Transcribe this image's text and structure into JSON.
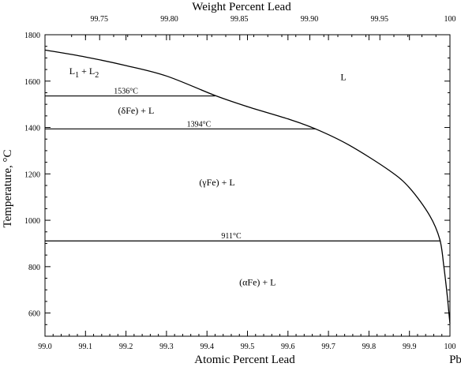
{
  "chart_data": {
    "type": "line",
    "title": "",
    "xlabel": "Atomic Percent Lead",
    "x2label": "Weight Percent Lead",
    "ylabel": "Temperature, °C",
    "xlim": [
      99.0,
      100.0
    ],
    "ylim": [
      500,
      1800
    ],
    "x_ticks": [
      99.0,
      99.1,
      99.2,
      99.3,
      99.4,
      99.5,
      99.6,
      99.7,
      99.8,
      99.9,
      100
    ],
    "x_tick_labels": [
      "99.0",
      "99.1",
      "99.2",
      "99.3",
      "99.4",
      "99.5",
      "99.6",
      "99.7",
      "99.8",
      "99.9",
      "100"
    ],
    "x2_ticks": [
      {
        "label": "99.75",
        "at": 99.134
      },
      {
        "label": "99.80",
        "at": 99.307
      },
      {
        "label": "99.85",
        "at": 99.48
      },
      {
        "label": "99.90",
        "at": 99.653
      },
      {
        "label": "99.95",
        "at": 99.826
      },
      {
        "label": "100",
        "at": 100.0
      }
    ],
    "y_ticks": [
      600,
      800,
      1000,
      1200,
      1400,
      1600,
      1800
    ],
    "y_tick_labels": [
      "600",
      "800",
      "1000",
      "1200",
      "1400",
      "1600",
      "1800"
    ],
    "element_label": "Pb",
    "grid": false,
    "series": [
      {
        "x": [
          99.0,
          99.1,
          99.2,
          99.3,
          99.42,
          99.5,
          99.6,
          99.668,
          99.75,
          99.85,
          99.9,
          99.95,
          99.975,
          99.985,
          99.993,
          99.998,
          100.0
        ],
        "y": [
          1734,
          1704,
          1667,
          1622,
          1538,
          1490,
          1437,
          1394,
          1325,
          1215,
          1140,
          1020,
          917,
          800,
          680,
          590,
          555
        ]
      }
    ],
    "horizontal_lines": [
      {
        "y": 1536,
        "x_start": 99.0,
        "x_end": 99.42,
        "label": "1536°C",
        "label_x": 99.2
      },
      {
        "y": 1394,
        "x_start": 99.0,
        "x_end": 99.668,
        "label": "1394°C",
        "label_x": 99.38
      },
      {
        "y": 911,
        "x_start": 99.0,
        "x_end": 99.977,
        "label": "911°C",
        "label_x": 99.46
      }
    ],
    "regions": [
      {
        "label": "L",
        "x": 99.737,
        "y": 1605
      },
      {
        "label": "(δFe) + L",
        "x": 99.225,
        "y": 1460
      },
      {
        "label": "(γFe) + L",
        "x": 99.425,
        "y": 1150
      },
      {
        "label": "(αFe) + L",
        "x": 99.525,
        "y": 720
      }
    ],
    "l1l2_label": {
      "text": "L",
      "sub1": "1",
      "mid": " + L",
      "sub2": "2",
      "x": 99.06,
      "y": 1630
    }
  }
}
